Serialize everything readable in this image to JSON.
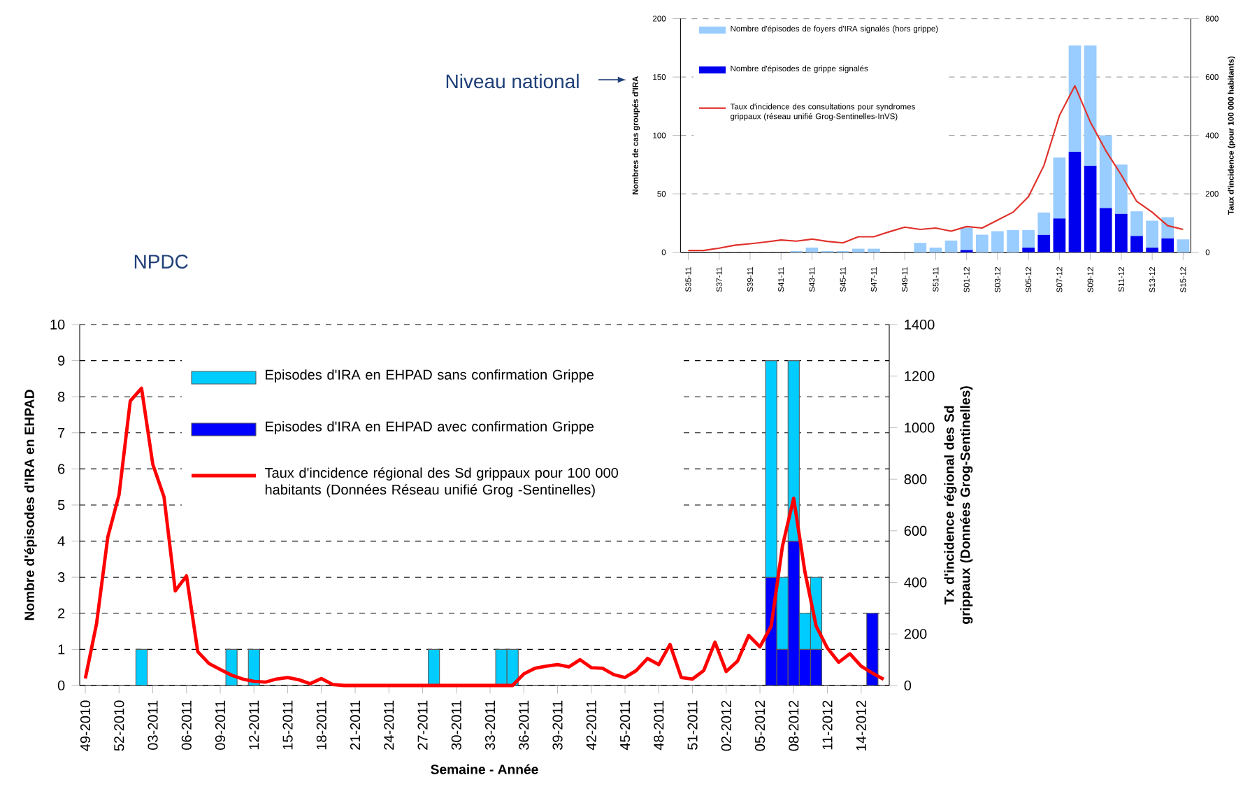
{
  "chart_data": [
    {
      "type": "bar",
      "title": "Niveau national",
      "ylabel": "Nombres de cas groupés d'IRA",
      "y2label": "Taux d'incidence (pour 100 000 habitants)",
      "categories": [
        "S35-11",
        null,
        "S37-11",
        null,
        "S39-11",
        null,
        "S41-11",
        null,
        "S43-11",
        null,
        "S45-11",
        null,
        "S47-11",
        null,
        "S49-11",
        null,
        "S51-11",
        null,
        "S01-12",
        null,
        "S03-12",
        null,
        "S05-12",
        null,
        "S07-12",
        null,
        "S09-12",
        null,
        "S11-12",
        null,
        "S13-12",
        null,
        "S15-12"
      ],
      "series": [
        {
          "name": "Nombre d'épisodes de grippe signalés",
          "color": "#0000ee",
          "values": [
            null,
            null,
            null,
            null,
            null,
            null,
            null,
            null,
            null,
            null,
            null,
            null,
            null,
            null,
            null,
            null,
            null,
            null,
            2,
            null,
            null,
            null,
            4,
            15,
            29,
            86,
            74,
            38,
            33,
            14,
            4,
            12,
            null
          ]
        },
        {
          "name": "Nombre d'épisodes de foyers d'IRA signalés (hors grippe)",
          "color": "#99ccff",
          "values": [
            null,
            null,
            null,
            null,
            null,
            null,
            null,
            1,
            4,
            1,
            1,
            3,
            3,
            null,
            null,
            8,
            4,
            10,
            19,
            15,
            18,
            19,
            15,
            19,
            52,
            91,
            103,
            62,
            42,
            21,
            23,
            18,
            11
          ]
        },
        {
          "name": "Taux d'incidence des consultations pour syndromes grippaux (réseau unifié Grog-Sentinelles-InVS)",
          "type": "line",
          "axis": "y2",
          "color": "#e0302a",
          "values": [
            6,
            6,
            14,
            24,
            29,
            35,
            42,
            38,
            45,
            37,
            32,
            53,
            53,
            70,
            86,
            78,
            83,
            72,
            88,
            83,
            110,
            137,
            190,
            297,
            468,
            570,
            446,
            348,
            265,
            174,
            137,
            91,
            78
          ]
        }
      ],
      "stacked": true,
      "ylim": [
        0,
        200
      ],
      "yticks": [
        0,
        50,
        100,
        150,
        200
      ],
      "y2lim": [
        0,
        800
      ],
      "y2ticks": [
        0,
        200,
        400,
        600,
        800
      ],
      "grid": "y",
      "legend": "top left"
    },
    {
      "type": "bar",
      "title": "NPDC",
      "xlabel": "Semaine - Année",
      "ylabel": "Nombre d'épisodes d'IRA en EHPAD",
      "y2label": "Tx d'incidence régional des Sd grippaux (Données Grog-Sentinelles)",
      "categories": [
        "49-2010",
        null,
        null,
        "52-2010",
        null,
        null,
        "03-2011",
        null,
        null,
        "06-2011",
        null,
        null,
        "09-2011",
        null,
        null,
        "12-2011",
        null,
        null,
        "15-2011",
        null,
        null,
        "18-2011",
        null,
        null,
        "21-2011",
        null,
        null,
        "24-2011",
        null,
        null,
        "27-2011",
        null,
        null,
        "30-2011",
        null,
        null,
        "33-2011",
        null,
        null,
        "36-2011",
        null,
        null,
        "39-2011",
        null,
        null,
        "42-2011",
        null,
        null,
        "45-2011",
        null,
        null,
        "48-2011",
        null,
        null,
        "51-2011",
        null,
        null,
        "02-2012",
        null,
        null,
        "05-2012",
        null,
        null,
        "08-2012",
        null,
        null,
        "11-2012",
        null,
        null,
        "14-2012",
        null,
        null
      ],
      "series": [
        {
          "name": "Episodes d'IRA en EHPAD avec confirmation Grippe",
          "color": "#0000ff",
          "values": [
            null,
            null,
            null,
            null,
            null,
            null,
            null,
            null,
            null,
            null,
            null,
            null,
            null,
            null,
            null,
            null,
            null,
            null,
            null,
            null,
            null,
            null,
            null,
            null,
            null,
            null,
            null,
            null,
            null,
            null,
            null,
            null,
            null,
            null,
            null,
            null,
            null,
            null,
            null,
            null,
            null,
            null,
            null,
            null,
            null,
            null,
            null,
            null,
            null,
            null,
            null,
            null,
            null,
            null,
            null,
            null,
            null,
            null,
            null,
            null,
            null,
            3,
            1,
            4,
            1,
            1,
            null,
            null,
            null,
            null,
            2,
            null
          ]
        },
        {
          "name": "Episodes d'IRA en EHPAD sans confirmation Grippe",
          "color": "#00ccff",
          "values": [
            null,
            null,
            null,
            null,
            null,
            1,
            null,
            null,
            null,
            null,
            null,
            null,
            null,
            1,
            null,
            1,
            null,
            null,
            null,
            null,
            null,
            null,
            null,
            null,
            null,
            null,
            null,
            null,
            null,
            null,
            null,
            1,
            null,
            null,
            null,
            null,
            null,
            1,
            1,
            null,
            null,
            null,
            null,
            null,
            null,
            null,
            null,
            null,
            null,
            null,
            null,
            null,
            null,
            null,
            null,
            null,
            null,
            null,
            null,
            null,
            null,
            6,
            2,
            5,
            1,
            2,
            null,
            null,
            null,
            null,
            null,
            null
          ]
        },
        {
          "name": "Taux d'incidence régional des Sd grippaux pour 100 000 habitants (Données Réseau unifié Grog -Sentinelles)",
          "type": "line",
          "axis": "y2",
          "color": "#ff0000",
          "values": [
            27,
            240,
            576,
            740,
            1104,
            1153,
            858,
            731,
            367,
            425,
            131,
            85,
            62,
            40,
            25,
            16,
            13,
            25,
            31,
            22,
            7,
            27,
            4,
            0,
            0,
            0,
            0,
            0,
            0,
            0,
            0,
            0,
            0,
            0,
            0,
            0,
            0,
            0,
            0,
            45,
            67,
            75,
            81,
            72,
            100,
            69,
            67,
            42,
            31,
            58,
            105,
            81,
            159,
            31,
            25,
            58,
            168,
            54,
            94,
            194,
            150,
            230,
            540,
            726,
            440,
            230,
            145,
            90,
            123,
            75,
            48,
            24
          ]
        }
      ],
      "stacked": true,
      "ylim": [
        0,
        10
      ],
      "yticks": [
        0,
        1,
        2,
        3,
        4,
        5,
        6,
        7,
        8,
        9,
        10
      ],
      "y2lim": [
        0,
        1400
      ],
      "y2ticks": [
        0,
        200,
        400,
        600,
        800,
        1000,
        1200,
        1400
      ],
      "grid": "y",
      "legend": "top left"
    }
  ]
}
